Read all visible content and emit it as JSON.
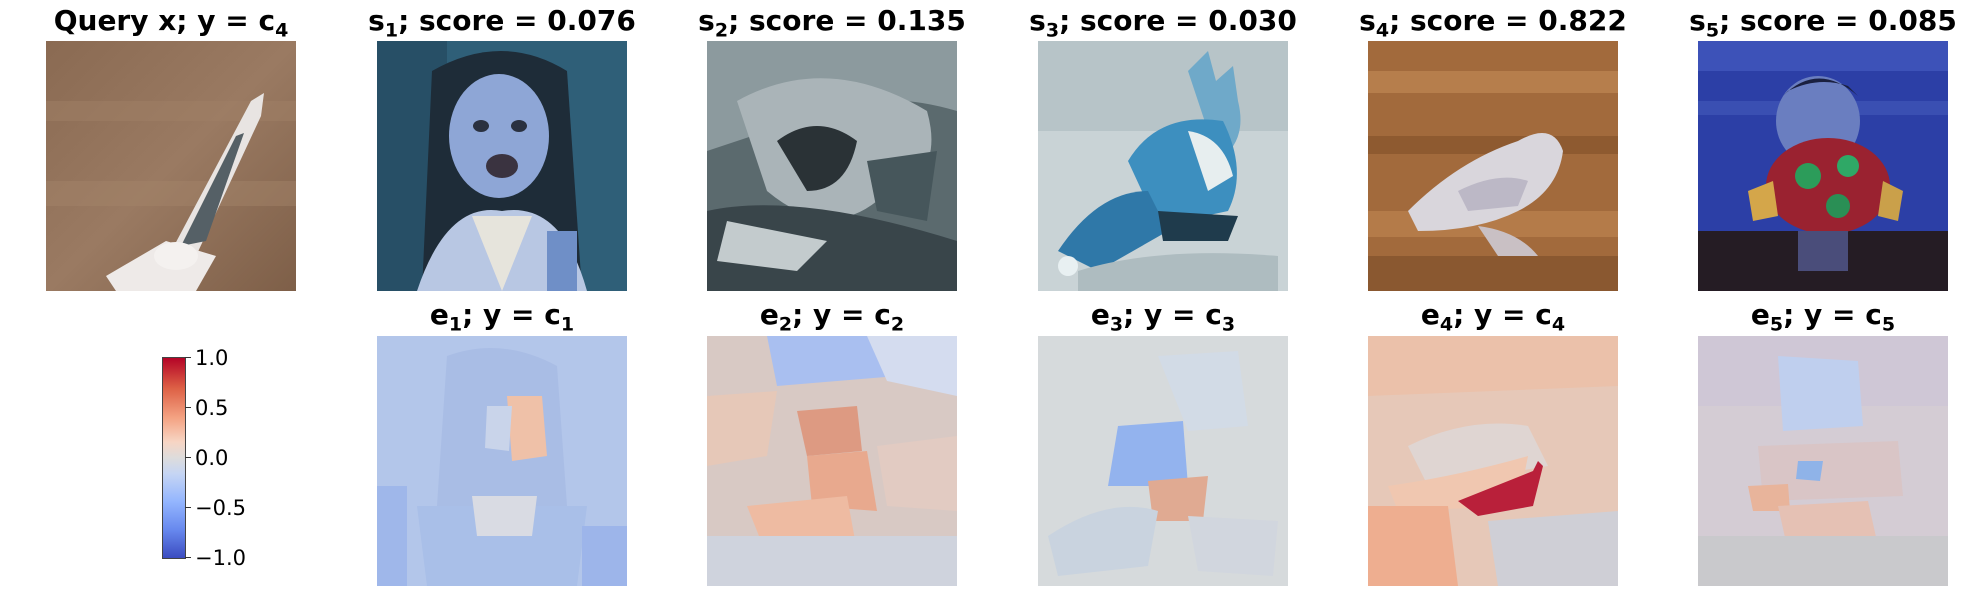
{
  "top_row": [
    {
      "pre": "Query x; y = c",
      "sub": "4",
      "post": "",
      "scene": "query-gull-flying"
    },
    {
      "pre": "s",
      "sub": "1",
      "post": "; score = 0.076",
      "scene": "girl-portrait"
    },
    {
      "pre": "s",
      "sub": "2",
      "post": "; score = 0.135",
      "scene": "gray-bird-closeup"
    },
    {
      "pre": "s",
      "sub": "3",
      "post": "; score = 0.030",
      "scene": "blue-fox-sitting"
    },
    {
      "pre": "s",
      "sub": "4",
      "post": "; score = 0.822",
      "scene": "white-bird-wood"
    },
    {
      "pre": "s",
      "sub": "5",
      "post": "; score = 0.085",
      "scene": "child-holding-toy"
    }
  ],
  "bottom_row": [
    {
      "pre": "e",
      "sub": "1",
      "post": "; y = c",
      "sub2": "1"
    },
    {
      "pre": "e",
      "sub": "2",
      "post": "; y = c",
      "sub2": "2"
    },
    {
      "pre": "e",
      "sub": "3",
      "post": "; y = c",
      "sub2": "3"
    },
    {
      "pre": "e",
      "sub": "4",
      "post": "; y = c",
      "sub2": "4"
    },
    {
      "pre": "e",
      "sub": "5",
      "post": "; y = c",
      "sub2": "5"
    }
  ],
  "colorbar": {
    "ticks": [
      "1.0",
      "0.5",
      "0.0",
      "−0.5",
      "−1.0"
    ],
    "colormap": "coolwarm",
    "range": [
      -1.0,
      1.0
    ],
    "colors": {
      "high": "#b40426",
      "mid": "#dddcdc",
      "low": "#3b4cc0"
    }
  }
}
